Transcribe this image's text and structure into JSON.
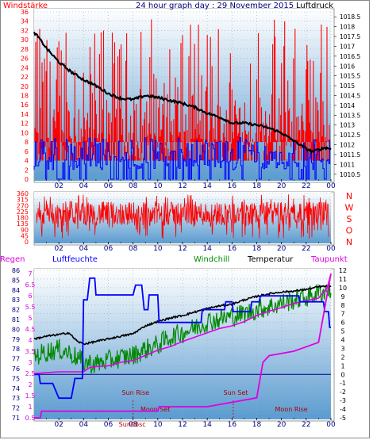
{
  "colors": {
    "background": "#ffffff",
    "frame": "#888888",
    "plot_top": "#ffffff",
    "plot_bottom": "#5a9bd0",
    "red": "#ff0000",
    "blue": "#0000ff",
    "black": "#000000",
    "green": "#008800",
    "magenta": "#e000e0",
    "dark_red": "#aa0000",
    "navy": "#000080"
  },
  "chart_data": [
    {
      "type": "line",
      "title": "24 hour graph day : 29 November 2015",
      "left_label": "Windstärke",
      "right_label": "Luftdruck",
      "x_ticks": [
        "02",
        "04",
        "06",
        "08",
        "10",
        "12",
        "14",
        "16",
        "18",
        "20",
        "22",
        "00"
      ],
      "y_left_ticks": [
        "0",
        "2",
        "4",
        "6",
        "8",
        "10",
        "12",
        "14",
        "16",
        "18",
        "20",
        "22",
        "24",
        "26",
        "28",
        "30",
        "32",
        "34",
        "36"
      ],
      "y_left_range": [
        0,
        36
      ],
      "y_right_ticks": [
        "1010.5",
        "1011",
        "1011.5",
        "1012",
        "1012.5",
        "1013",
        "1013.5",
        "1014",
        "1014.5",
        "1015",
        "1015.5",
        "1016",
        "1016.5",
        "1017",
        "1017.5",
        "1018",
        "1018.5"
      ],
      "y_right_range": [
        1010.25,
        1018.75
      ],
      "series": [
        {
          "name": "Windstärke",
          "color": "#ff0000",
          "style": "gust spikes",
          "baseline": 4,
          "peak_range": [
            8,
            35
          ]
        },
        {
          "name": "Windstärke",
          "color": "#0000ff",
          "style": "mean wind",
          "range": [
            0,
            9
          ]
        },
        {
          "name": "Luftdruck",
          "color": "#000000",
          "axis": "right",
          "points": [
            [
              0.0,
              1017.7
            ],
            [
              0.3,
              1017.5
            ],
            [
              1.0,
              1016.9
            ],
            [
              2.0,
              1016.2
            ],
            [
              3.0,
              1015.7
            ],
            [
              4.0,
              1015.3
            ],
            [
              5.0,
              1015.0
            ],
            [
              6.0,
              1014.6
            ],
            [
              7.0,
              1014.35
            ],
            [
              8.0,
              1014.3
            ],
            [
              9.0,
              1014.5
            ],
            [
              10.0,
              1014.4
            ],
            [
              11.0,
              1014.25
            ],
            [
              12.0,
              1014.1
            ],
            [
              13.0,
              1013.9
            ],
            [
              14.0,
              1013.6
            ],
            [
              15.0,
              1013.4
            ],
            [
              16.0,
              1013.1
            ],
            [
              17.0,
              1013.1
            ],
            [
              18.0,
              1013.0
            ],
            [
              19.0,
              1012.85
            ],
            [
              20.0,
              1012.6
            ],
            [
              21.0,
              1012.2
            ],
            [
              22.0,
              1011.8
            ],
            [
              22.5,
              1011.65
            ],
            [
              23.0,
              1011.75
            ],
            [
              23.5,
              1011.85
            ],
            [
              24.0,
              1011.8
            ]
          ]
        }
      ]
    },
    {
      "type": "line",
      "title": "",
      "x_ticks": [
        "02",
        "04",
        "06",
        "08",
        "10",
        "12",
        "14",
        "16",
        "18",
        "20",
        "22",
        "00"
      ],
      "y_left_ticks": [
        "0",
        "45",
        "90",
        "135",
        "180",
        "225",
        "270",
        "315",
        "360"
      ],
      "y_left_range": [
        0,
        360
      ],
      "compass_labels": [
        "N",
        "W",
        "S",
        "O",
        "N"
      ],
      "series": [
        {
          "name": "",
          "color": "#ff0000",
          "style": "noisy direction",
          "typical_range": [
            120,
            300
          ]
        }
      ]
    },
    {
      "type": "line",
      "title": "",
      "legend": [
        "Regen",
        "Luftfeuchte",
        "Windchill",
        "Temperatur",
        "Taupunkt"
      ],
      "legend_colors": [
        "#e000e0",
        "#0000ff",
        "#008800",
        "#000000",
        "#e000e0"
      ],
      "x_ticks": [
        "02",
        "04",
        "06",
        "08",
        "10",
        "12",
        "14",
        "16",
        "18",
        "20",
        "22",
        "00"
      ],
      "y_rain_ticks": [
        "0.5",
        "1",
        "1.5",
        "2",
        "2.5",
        "3",
        "3.5",
        "4",
        "4.5",
        "5",
        "5.5",
        "6",
        "6.5",
        "7"
      ],
      "y_humidity_ticks": [
        "71",
        "72",
        "73",
        "74",
        "75",
        "76",
        "77",
        "78",
        "79",
        "80",
        "81",
        "82",
        "83",
        "84",
        "85",
        "86"
      ],
      "y_temp_ticks": [
        "-5",
        "-4",
        "-3",
        "-2",
        "-1",
        "0",
        "1",
        "2",
        "3",
        "4",
        "5",
        "6",
        "7",
        "8",
        "9",
        "10",
        "11",
        "12"
      ],
      "y_temp_range": [
        -5,
        12
      ],
      "annotations": [
        {
          "label": "Sun Rise",
          "x": 8.2
        },
        {
          "label": "Sun Set",
          "x": 16.3
        },
        {
          "label": "Moon Set",
          "x": 9.8
        },
        {
          "label": "Moon Rise",
          "x": 20.8
        }
      ],
      "x_tick_overlap_label": "Sun06sc",
      "series": [
        {
          "name": "Temperatur",
          "color": "#000000",
          "axis": "temp",
          "points": [
            [
              0,
              4.1
            ],
            [
              1,
              4.4
            ],
            [
              2,
              4.6
            ],
            [
              2.8,
              4.8
            ],
            [
              3.5,
              3.8
            ],
            [
              4,
              3.5
            ],
            [
              5,
              3.8
            ],
            [
              6,
              4.1
            ],
            [
              7,
              4.4
            ],
            [
              8,
              4.7
            ],
            [
              9,
              5.6
            ],
            [
              10,
              6.1
            ],
            [
              11,
              6.5
            ],
            [
              12,
              6.8
            ],
            [
              13,
              7.2
            ],
            [
              14,
              7.6
            ],
            [
              15,
              7.9
            ],
            [
              16,
              8.1
            ],
            [
              17,
              8.6
            ],
            [
              18,
              9.0
            ],
            [
              19,
              9.3
            ],
            [
              20,
              9.5
            ],
            [
              21,
              9.6
            ],
            [
              22,
              9.8
            ],
            [
              23,
              10.1
            ],
            [
              24,
              10.2
            ]
          ]
        },
        {
          "name": "Windchill",
          "color": "#008800",
          "axis": "temp",
          "style": "noisy",
          "points": [
            [
              0,
              2.1
            ],
            [
              1,
              2.6
            ],
            [
              2,
              2.9
            ],
            [
              3,
              2.4
            ],
            [
              4,
              1.4
            ],
            [
              5,
              1.2
            ],
            [
              6,
              1.6
            ],
            [
              7,
              1.9
            ],
            [
              8,
              2.2
            ],
            [
              9,
              2.9
            ],
            [
              10,
              3.4
            ],
            [
              11,
              4.3
            ],
            [
              12,
              4.8
            ],
            [
              13,
              5.4
            ],
            [
              14,
              6.1
            ],
            [
              15,
              6.4
            ],
            [
              16,
              6.7
            ],
            [
              17,
              7.0
            ],
            [
              18,
              7.5
            ],
            [
              19,
              7.8
            ],
            [
              20,
              8.2
            ],
            [
              21,
              8.6
            ],
            [
              22,
              8.9
            ],
            [
              23,
              9.4
            ],
            [
              24,
              9.8
            ]
          ]
        },
        {
          "name": "Taupunkt",
          "color": "#e000e0",
          "axis": "temp",
          "points": [
            [
              0,
              0.1
            ],
            [
              1,
              0.2
            ],
            [
              2,
              0.3
            ],
            [
              3,
              0.3
            ],
            [
              4,
              0.3
            ],
            [
              4.5,
              0.8
            ],
            [
              5,
              0.9
            ],
            [
              6,
              1.0
            ],
            [
              7,
              1.4
            ],
            [
              8,
              1.6
            ],
            [
              9,
              2.2
            ],
            [
              10,
              2.8
            ],
            [
              11,
              3.2
            ],
            [
              12,
              3.8
            ],
            [
              13,
              4.3
            ],
            [
              14,
              4.8
            ],
            [
              15,
              5.3
            ],
            [
              16,
              5.6
            ],
            [
              17,
              6.1
            ],
            [
              18,
              6.8
            ],
            [
              19,
              7.3
            ],
            [
              20,
              7.7
            ],
            [
              21,
              8.2
            ],
            [
              22,
              8.5
            ],
            [
              23,
              8.8
            ],
            [
              23.7,
              10.0
            ],
            [
              24,
              11.6
            ]
          ]
        },
        {
          "name": "Luftfeuchte",
          "color": "#0000ff",
          "axis": "humidity",
          "points": [
            [
              0,
              75.4
            ],
            [
              0.4,
              75.4
            ],
            [
              0.5,
              74.5
            ],
            [
              1.5,
              74.5
            ],
            [
              2,
              73.0
            ],
            [
              3,
              73.0
            ],
            [
              3.3,
              75.0
            ],
            [
              3.9,
              75.0
            ],
            [
              4.0,
              83.0
            ],
            [
              4.3,
              83.0
            ],
            [
              4.5,
              85.2
            ],
            [
              4.9,
              85.2
            ],
            [
              5.0,
              83.5
            ],
            [
              8.0,
              83.5
            ],
            [
              8.2,
              84.5
            ],
            [
              8.7,
              84.5
            ],
            [
              8.9,
              82.0
            ],
            [
              9.2,
              82.0
            ],
            [
              9.3,
              83.5
            ],
            [
              10.0,
              83.5
            ],
            [
              10.1,
              80.7
            ],
            [
              13.5,
              80.7
            ],
            [
              13.6,
              82.0
            ],
            [
              15.4,
              82.0
            ],
            [
              15.5,
              82.8
            ],
            [
              16.0,
              82.8
            ],
            [
              16.1,
              81.8
            ],
            [
              17.5,
              81.8
            ],
            [
              17.6,
              82.8
            ],
            [
              18.2,
              82.8
            ],
            [
              18.3,
              83.4
            ],
            [
              21.4,
              83.4
            ],
            [
              21.5,
              82.8
            ],
            [
              23.4,
              82.8
            ],
            [
              23.5,
              81.8
            ],
            [
              23.8,
              81.8
            ],
            [
              23.9,
              80.2
            ],
            [
              24,
              80.2
            ]
          ]
        },
        {
          "name": "Regen",
          "color": "#e000e0",
          "axis": "rain",
          "points": [
            [
              0,
              0.5
            ],
            [
              0.5,
              0.5
            ],
            [
              0.6,
              0.8
            ],
            [
              10,
              0.8
            ],
            [
              10.1,
              1.0
            ],
            [
              14,
              1.0
            ],
            [
              18,
              1.4
            ],
            [
              18.5,
              3.0
            ],
            [
              19,
              3.3
            ],
            [
              21,
              3.5
            ],
            [
              23,
              3.9
            ],
            [
              24,
              7.0
            ]
          ]
        }
      ]
    }
  ]
}
